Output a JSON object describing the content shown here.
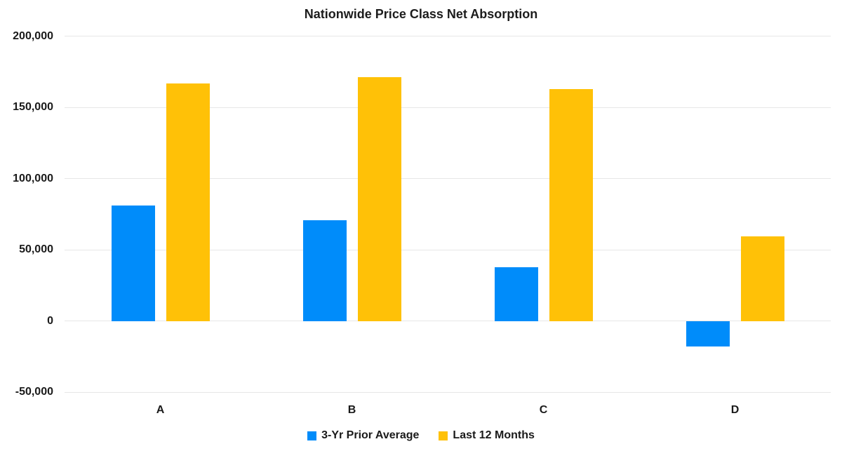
{
  "chart_data": {
    "type": "bar",
    "title": "Nationwide Price Class Net Absorption",
    "categories": [
      "A",
      "B",
      "C",
      "D"
    ],
    "series": [
      {
        "name": "3-Yr Prior Average",
        "color": "#008CFA",
        "values": [
          81000,
          71000,
          38000,
          -18000
        ]
      },
      {
        "name": "Last 12 Months",
        "color": "#FFC107",
        "values": [
          167000,
          171000,
          163000,
          59500
        ]
      }
    ],
    "ylim": [
      -50000,
      200000
    ],
    "y_ticks": [
      {
        "value": 200000,
        "label": "200,000"
      },
      {
        "value": 150000,
        "label": "150,000"
      },
      {
        "value": 100000,
        "label": "100,000"
      },
      {
        "value": 50000,
        "label": "50,000"
      },
      {
        "value": 0,
        "label": "0"
      },
      {
        "value": -50000,
        "label": "-50,000"
      }
    ],
    "grid": true,
    "legend_position": "bottom"
  }
}
